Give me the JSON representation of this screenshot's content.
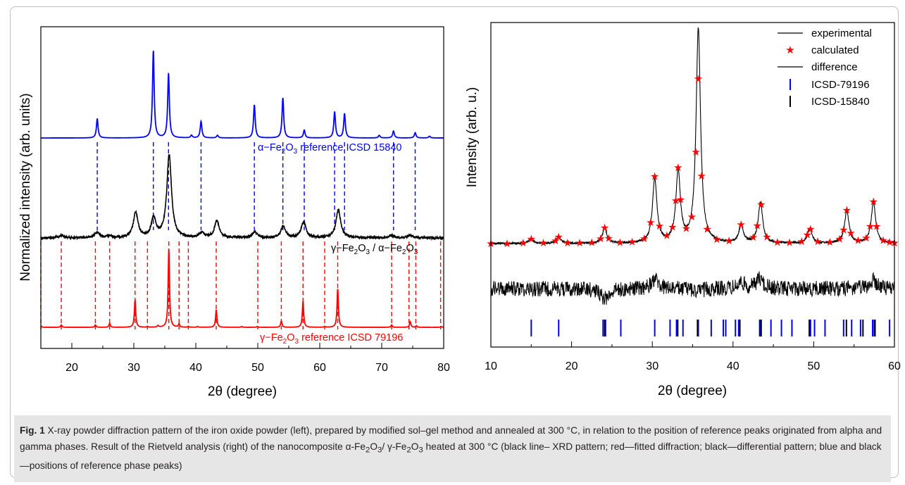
{
  "chart_data": [
    {
      "type": "line",
      "xlabel": "2θ (degree)",
      "ylabel": "Normalized intensity (arb. units)",
      "xlim": [
        15,
        80
      ],
      "xticks": [
        20,
        30,
        40,
        50,
        60,
        70,
        80
      ],
      "yticks": "none",
      "series": [
        {
          "name": "α−Fe2O3 reference ICSD 15840",
          "color": "#0000ff",
          "peaks": [
            {
              "x": 24.1,
              "y": 0.22
            },
            {
              "x": 33.15,
              "y": 1.0
            },
            {
              "x": 35.6,
              "y": 0.74
            },
            {
              "x": 39.3,
              "y": 0.03
            },
            {
              "x": 40.85,
              "y": 0.19
            },
            {
              "x": 43.5,
              "y": 0.03
            },
            {
              "x": 49.45,
              "y": 0.38
            },
            {
              "x": 54.05,
              "y": 0.46
            },
            {
              "x": 57.5,
              "y": 0.09
            },
            {
              "x": 62.4,
              "y": 0.3
            },
            {
              "x": 64.0,
              "y": 0.28
            },
            {
              "x": 69.6,
              "y": 0.03
            },
            {
              "x": 71.9,
              "y": 0.08
            },
            {
              "x": 75.4,
              "y": 0.06
            },
            {
              "x": 77.7,
              "y": 0.02
            }
          ]
        },
        {
          "name": "γ−Fe2O3 / α−Fe2O3",
          "color": "#000000",
          "peaks": [
            {
              "x": 18.4,
              "y": 0.03
            },
            {
              "x": 24.1,
              "y": 0.07
            },
            {
              "x": 26.1,
              "y": 0.02
            },
            {
              "x": 30.3,
              "y": 0.3
            },
            {
              "x": 33.2,
              "y": 0.23
            },
            {
              "x": 35.7,
              "y": 1.0
            },
            {
              "x": 41.0,
              "y": 0.06
            },
            {
              "x": 43.4,
              "y": 0.2
            },
            {
              "x": 49.5,
              "y": 0.07
            },
            {
              "x": 54.1,
              "y": 0.14
            },
            {
              "x": 57.4,
              "y": 0.19
            },
            {
              "x": 63.0,
              "y": 0.34
            },
            {
              "x": 71.5,
              "y": 0.03
            },
            {
              "x": 74.6,
              "y": 0.03
            }
          ]
        },
        {
          "name": "γ−Fe2O3 reference ICSD 79196",
          "color": "#ff0000",
          "peaks": [
            {
              "x": 15.0,
              "y": 0.02
            },
            {
              "x": 18.3,
              "y": 0.03
            },
            {
              "x": 23.8,
              "y": 0.03
            },
            {
              "x": 26.1,
              "y": 0.05
            },
            {
              "x": 30.2,
              "y": 0.35
            },
            {
              "x": 32.2,
              "y": 0.01
            },
            {
              "x": 33.9,
              "y": 0.02
            },
            {
              "x": 35.65,
              "y": 1.0
            },
            {
              "x": 37.3,
              "y": 0.04
            },
            {
              "x": 38.8,
              "y": 0.01
            },
            {
              "x": 40.3,
              "y": 0.01
            },
            {
              "x": 43.3,
              "y": 0.22
            },
            {
              "x": 47.4,
              "y": 0.01
            },
            {
              "x": 49.9,
              "y": 0.01
            },
            {
              "x": 53.8,
              "y": 0.08
            },
            {
              "x": 57.3,
              "y": 0.33
            },
            {
              "x": 60.8,
              "y": 0.01
            },
            {
              "x": 62.9,
              "y": 0.49
            },
            {
              "x": 71.6,
              "y": 0.03
            },
            {
              "x": 74.6,
              "y": 0.07
            },
            {
              "x": 75.6,
              "y": 0.02
            },
            {
              "x": 79.6,
              "y": 0.01
            }
          ]
        }
      ],
      "reference_lines": [
        {
          "name": "α−Fe2O3 reference ICSD 15840",
          "color": "#0000ff",
          "x": [
            24.1,
            33.15,
            35.6,
            40.85,
            49.45,
            54.05,
            57.5,
            62.4,
            64.0,
            71.9,
            75.4
          ]
        },
        {
          "name": "γ−Fe2O3 reference ICSD 79196",
          "color": "#ff0000",
          "x": [
            15.0,
            18.3,
            23.8,
            26.1,
            30.2,
            32.2,
            35.65,
            37.3,
            38.8,
            43.3,
            50.0,
            53.8,
            57.3,
            60.8,
            62.9,
            71.6,
            74.4,
            75.5,
            79.5
          ]
        }
      ]
    },
    {
      "type": "line",
      "xlabel": "2θ (degree)",
      "ylabel": "Intensity (arb. u.)",
      "xlim": [
        10,
        60
      ],
      "xticks": [
        10,
        20,
        30,
        40,
        50,
        60
      ],
      "legend_position": "top-right",
      "legend": [
        "experimental",
        "calculated",
        "difference",
        "ICSD-79196",
        "ICSD-15840"
      ],
      "series": [
        {
          "name": "experimental",
          "color": "#000000",
          "peaks": [
            {
              "x": 15.0,
              "y": 0.02
            },
            {
              "x": 18.4,
              "y": 0.03
            },
            {
              "x": 24.1,
              "y": 0.07
            },
            {
              "x": 30.3,
              "y": 0.3
            },
            {
              "x": 33.2,
              "y": 0.33
            },
            {
              "x": 35.7,
              "y": 1.0
            },
            {
              "x": 41.0,
              "y": 0.08
            },
            {
              "x": 43.4,
              "y": 0.19
            },
            {
              "x": 49.5,
              "y": 0.07
            },
            {
              "x": 54.1,
              "y": 0.15
            },
            {
              "x": 57.4,
              "y": 0.19
            }
          ]
        },
        {
          "name": "calculated",
          "color": "#ff0000",
          "points_x": [
            10.0,
            12.0,
            14.0,
            15.0,
            16.5,
            18.0,
            18.4,
            19.5,
            21.0,
            22.5,
            23.6,
            24.1,
            24.6,
            26.0,
            27.5,
            29.0,
            29.8,
            30.3,
            30.9,
            31.8,
            32.5,
            32.9,
            33.2,
            33.5,
            34.2,
            34.9,
            35.4,
            35.7,
            36.1,
            36.8,
            38.0,
            39.5,
            41.0,
            42.5,
            43.0,
            43.5,
            44.2,
            45.5,
            47.0,
            48.5,
            49.2,
            49.6,
            50.5,
            52.0,
            53.2,
            53.7,
            54.1,
            54.6,
            55.5,
            56.5,
            57.0,
            57.4,
            57.8,
            58.6,
            59.4,
            60.0
          ]
        },
        {
          "name": "difference",
          "color": "#000000"
        }
      ],
      "tick_marks": [
        {
          "name": "ICSD-79196",
          "color": "#0000ff",
          "x": [
            15.0,
            18.4,
            23.9,
            24.2,
            26.1,
            30.3,
            32.2,
            33.0,
            33.8,
            35.7,
            37.3,
            38.8,
            39.1,
            40.3,
            40.7,
            43.3,
            43.5,
            44.7,
            46.0,
            47.3,
            49.6,
            50.1,
            51.4,
            53.7,
            54.7,
            55.8,
            57.3,
            57.5,
            59.4
          ]
        },
        {
          "name": "ICSD-15840",
          "color": "#000000",
          "x": [
            24.1,
            33.15,
            35.6,
            40.85,
            43.4,
            49.45,
            54.05,
            56.1,
            57.6
          ]
        }
      ]
    }
  ],
  "left_chart": {
    "ylabel": "Normalized intensity (arb. units)",
    "xlabel": "2θ (degree)",
    "label_alpha_pre": "α−Fe",
    "label_alpha_mid": "O",
    "label_alpha_post": " reference ICSD 15840",
    "label_mix_a": "γ−Fe",
    "label_mix_b": "O",
    "label_mix_c": " / α−Fe",
    "label_mix_d": "O",
    "label_gamma_pre": "γ−Fe",
    "label_gamma_mid": "O",
    "label_gamma_post": " reference ICSD 79196",
    "sub2": "2",
    "sub3": "3",
    "xtick_labels": [
      "20",
      "30",
      "40",
      "50",
      "60",
      "70",
      "80"
    ]
  },
  "right_chart": {
    "ylabel": "Intensity (arb. u.)",
    "xlabel": "2θ (degree)",
    "xtick_labels": [
      "10",
      "20",
      "30",
      "40",
      "50",
      "60"
    ],
    "legend_experimental": "experimental",
    "legend_calculated": "calculated",
    "legend_difference": "difference",
    "legend_icsd79196": "ICSD-79196",
    "legend_icsd15840": "ICSD-15840",
    "legend_star": "★",
    "legend_tick": "|"
  },
  "caption": {
    "label": "Fig. 1",
    "text_1": "  X-ray powder diffraction pattern of the iron oxide powder (left), prepared by modified sol–gel method and annealed at 300 °C, in relation to the position of reference peaks originated from alpha and gamma phases. Result of the Rietveld analysis (right) of the nanocomposite α-Fe",
    "sub_a": "2",
    "text_2": "O",
    "sub_b": "3",
    "text_3": "/ γ-Fe",
    "sub_c": "2",
    "text_4": "O",
    "sub_d": "3",
    "text_5": " heated at 300 °C (black line– XRD pattern; red—fitted diffraction; black—differential pattern; blue and black—positions of reference phase peaks)"
  }
}
